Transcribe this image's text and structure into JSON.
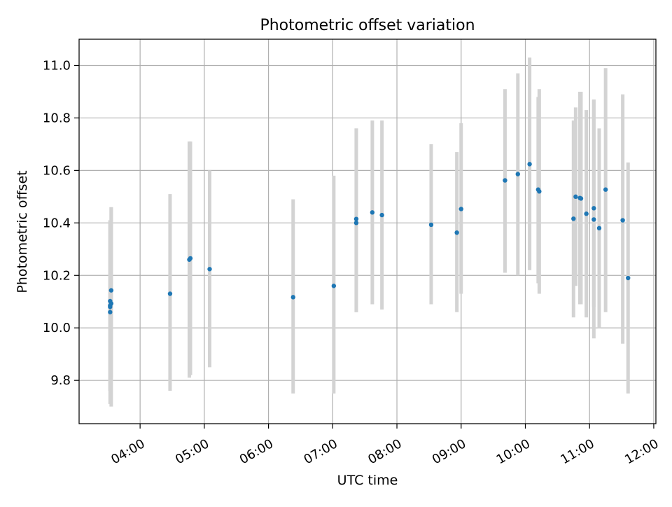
{
  "chart_data": {
    "type": "scatter",
    "title": "Photometric offset variation",
    "xlabel": "UTC time",
    "ylabel": "Photometric offset",
    "xlim": [
      "03:03",
      "12:02"
    ],
    "ylim": [
      9.635,
      11.1
    ],
    "x_ticks": [
      "04:00",
      "05:00",
      "06:00",
      "07:00",
      "08:00",
      "09:00",
      "10:00",
      "11:00",
      "12:00"
    ],
    "y_ticks": [
      9.8,
      10.0,
      10.2,
      10.4,
      10.6,
      10.8,
      11.0
    ],
    "y_tick_labels": [
      "9.8",
      "10.0",
      "10.2",
      "10.4",
      "10.6",
      "10.8",
      "11.0"
    ],
    "grid": true,
    "point_color": "#1f77b4",
    "errorbar_color": "#d3d3d3",
    "points": [
      {
        "x": "03:32",
        "y": 10.08,
        "ylow": 9.76,
        "yhigh": 10.41
      },
      {
        "x": "03:32",
        "y": 10.085,
        "ylow": 9.76,
        "yhigh": 10.41
      },
      {
        "x": "03:32",
        "y": 10.102,
        "ylow": 9.76,
        "yhigh": 10.41
      },
      {
        "x": "03:32",
        "y": 10.06,
        "ylow": 9.71,
        "yhigh": 10.4
      },
      {
        "x": "03:33",
        "y": 10.093,
        "ylow": 9.7,
        "yhigh": 10.46
      },
      {
        "x": "03:33",
        "y": 10.143,
        "ylow": 9.81,
        "yhigh": 10.46
      },
      {
        "x": "04:28",
        "y": 10.13,
        "ylow": 9.76,
        "yhigh": 10.51
      },
      {
        "x": "04:46",
        "y": 10.26,
        "ylow": 9.81,
        "yhigh": 10.71
      },
      {
        "x": "04:47",
        "y": 10.265,
        "ylow": 9.82,
        "yhigh": 10.71
      },
      {
        "x": "05:05",
        "y": 10.224,
        "ylow": 9.85,
        "yhigh": 10.6
      },
      {
        "x": "06:23",
        "y": 10.117,
        "ylow": 9.75,
        "yhigh": 10.49
      },
      {
        "x": "07:01",
        "y": 10.16,
        "ylow": 9.75,
        "yhigh": 10.58
      },
      {
        "x": "07:22",
        "y": 10.415,
        "ylow": 10.06,
        "yhigh": 10.76
      },
      {
        "x": "07:22",
        "y": 10.4,
        "ylow": 10.06,
        "yhigh": 10.76
      },
      {
        "x": "07:37",
        "y": 10.44,
        "ylow": 10.09,
        "yhigh": 10.79
      },
      {
        "x": "07:46",
        "y": 10.43,
        "ylow": 10.07,
        "yhigh": 10.79
      },
      {
        "x": "08:32",
        "y": 10.393,
        "ylow": 10.09,
        "yhigh": 10.7
      },
      {
        "x": "08:56",
        "y": 10.363,
        "ylow": 10.06,
        "yhigh": 10.67
      },
      {
        "x": "09:00",
        "y": 10.453,
        "ylow": 10.13,
        "yhigh": 10.78
      },
      {
        "x": "09:41",
        "y": 10.562,
        "ylow": 10.21,
        "yhigh": 10.91
      },
      {
        "x": "09:53",
        "y": 10.586,
        "ylow": 10.2,
        "yhigh": 10.97
      },
      {
        "x": "10:04",
        "y": 10.624,
        "ylow": 10.22,
        "yhigh": 11.03
      },
      {
        "x": "10:12",
        "y": 10.527,
        "ylow": 10.17,
        "yhigh": 10.88
      },
      {
        "x": "10:13",
        "y": 10.52,
        "ylow": 10.13,
        "yhigh": 10.91
      },
      {
        "x": "10:45",
        "y": 10.416,
        "ylow": 10.04,
        "yhigh": 10.79
      },
      {
        "x": "10:47",
        "y": 10.5,
        "ylow": 10.16,
        "yhigh": 10.84
      },
      {
        "x": "10:51",
        "y": 10.495,
        "ylow": 10.09,
        "yhigh": 10.9
      },
      {
        "x": "10:52",
        "y": 10.493,
        "ylow": 10.09,
        "yhigh": 10.9
      },
      {
        "x": "10:57",
        "y": 10.435,
        "ylow": 10.04,
        "yhigh": 10.83
      },
      {
        "x": "11:04",
        "y": 10.456,
        "ylow": 10.08,
        "yhigh": 10.87
      },
      {
        "x": "11:04",
        "y": 10.413,
        "ylow": 9.96,
        "yhigh": 10.87
      },
      {
        "x": "11:09",
        "y": 10.38,
        "ylow": 10.0,
        "yhigh": 10.76
      },
      {
        "x": "11:15",
        "y": 10.527,
        "ylow": 10.06,
        "yhigh": 10.99
      },
      {
        "x": "11:31",
        "y": 10.41,
        "ylow": 9.94,
        "yhigh": 10.89
      },
      {
        "x": "11:36",
        "y": 10.19,
        "ylow": 9.75,
        "yhigh": 10.63
      }
    ]
  }
}
